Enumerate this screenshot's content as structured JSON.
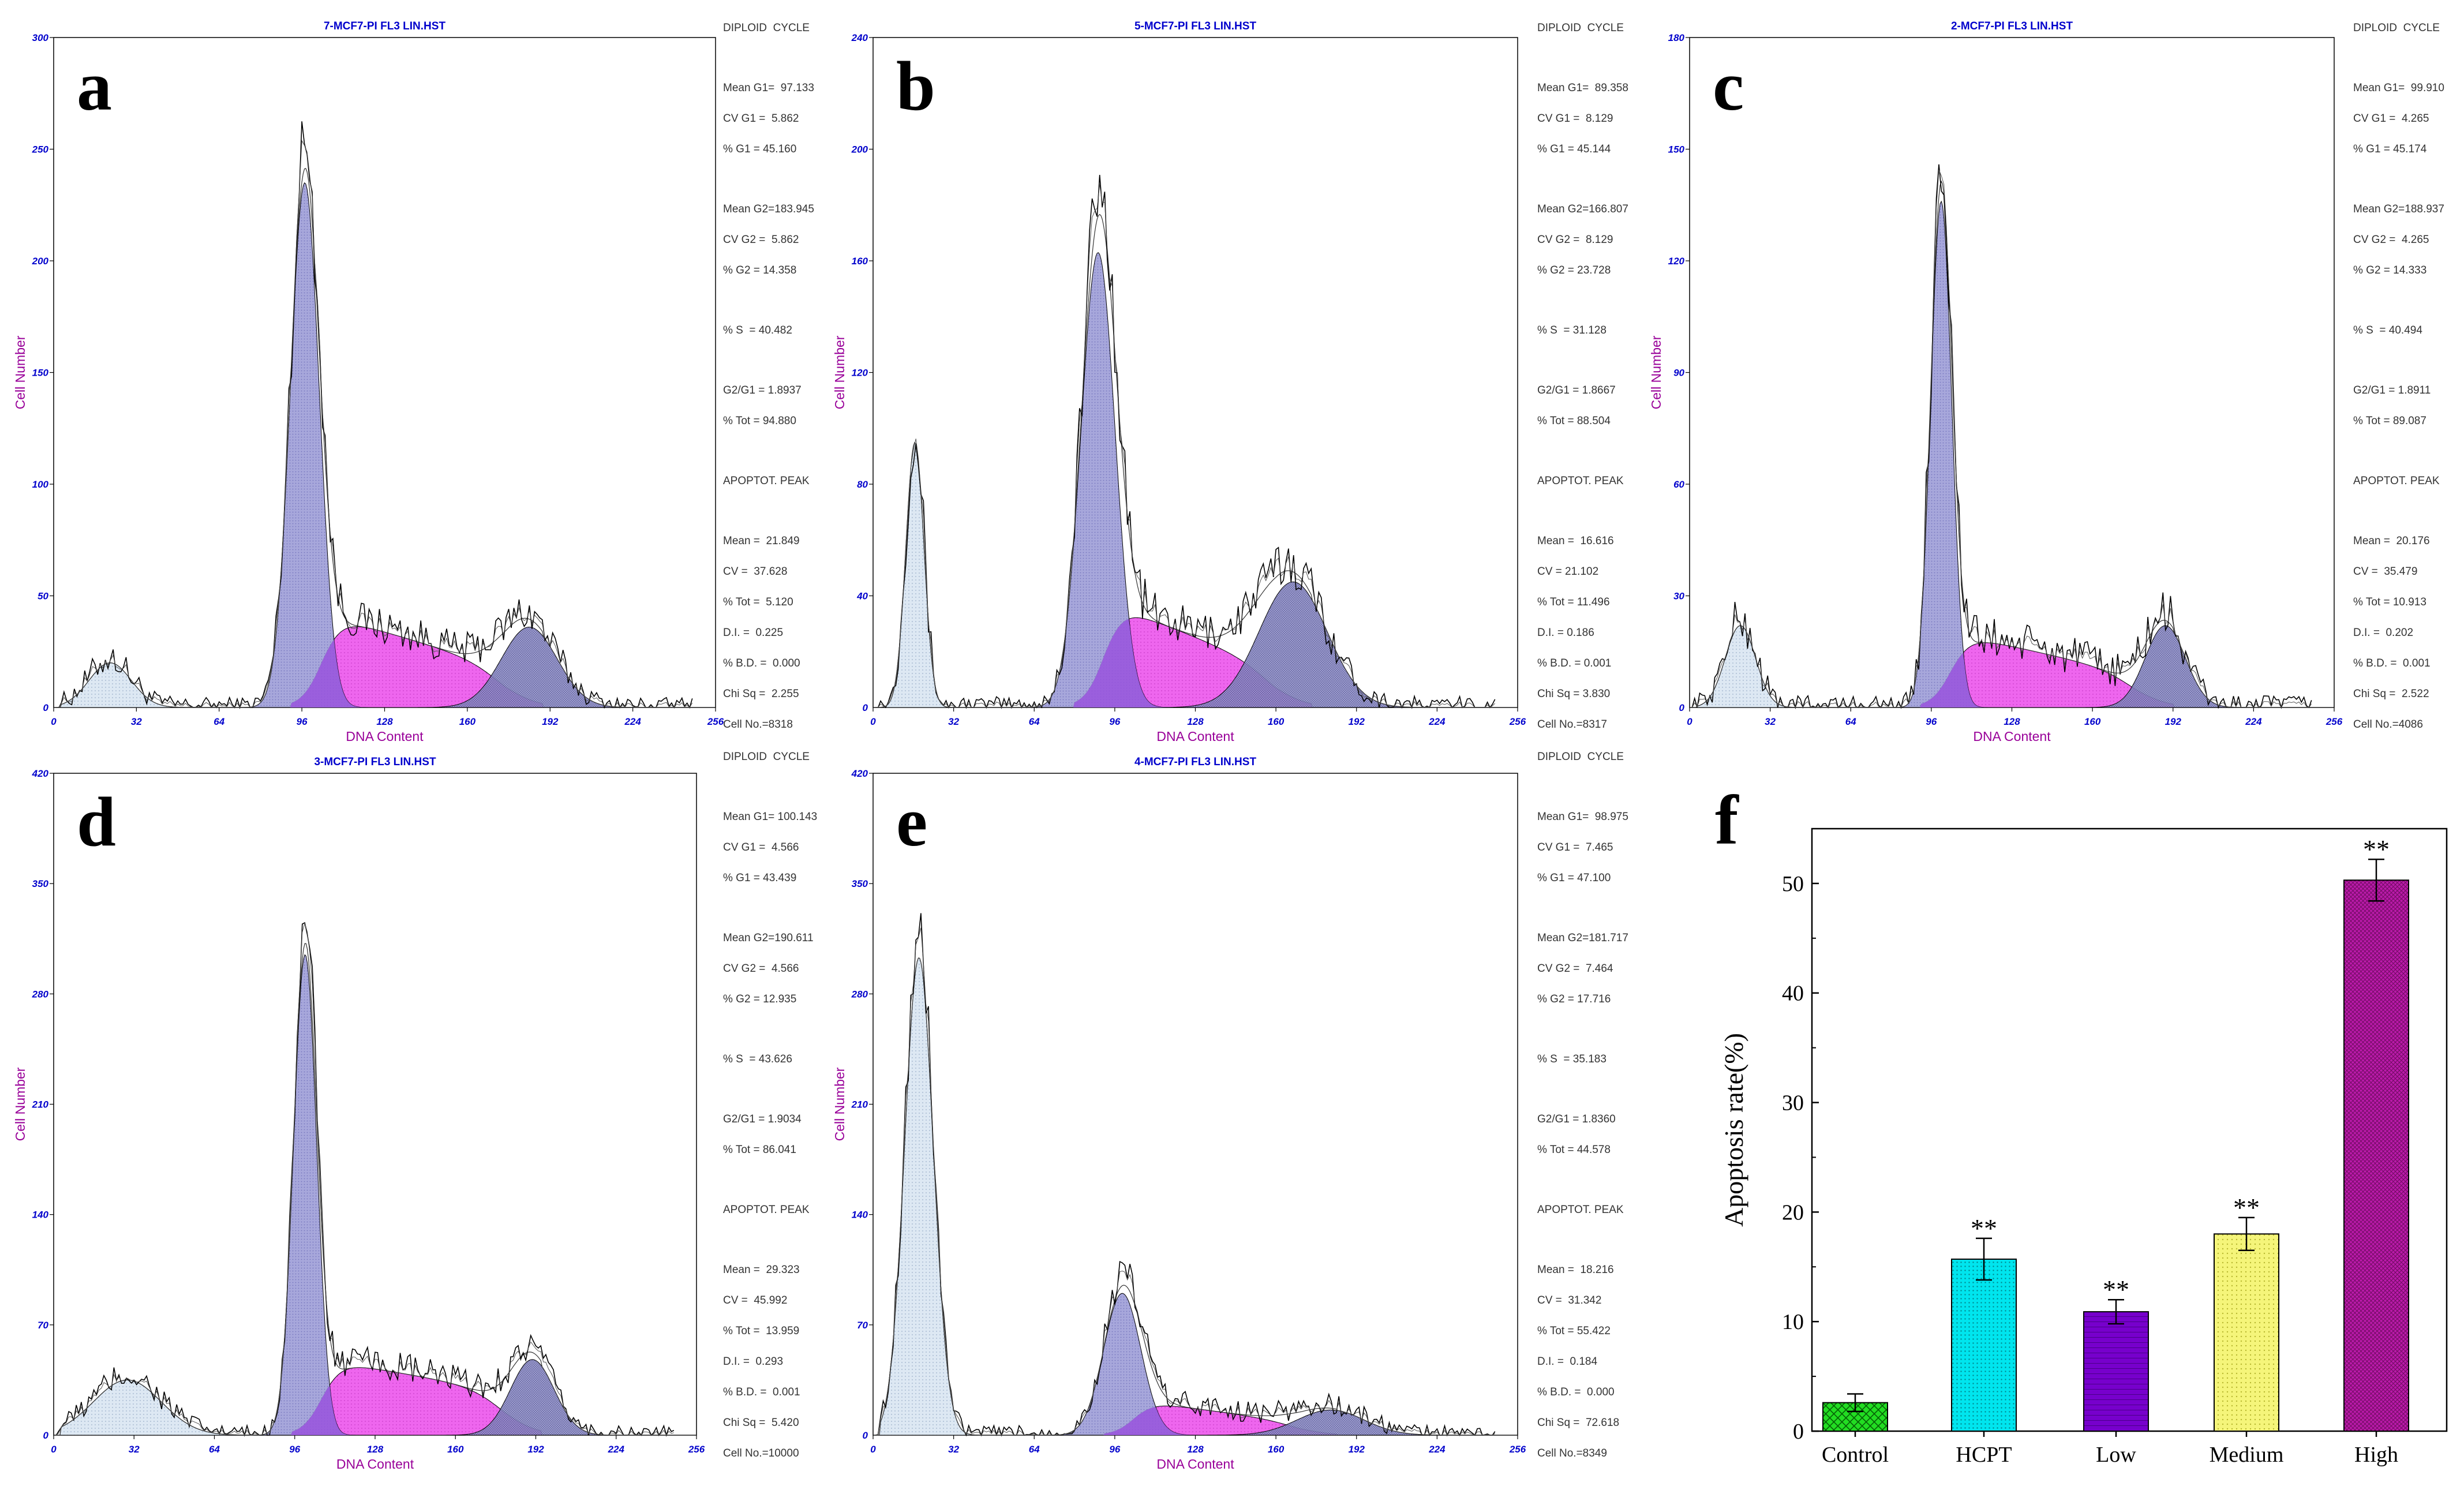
{
  "figure": {
    "axis_text_color": "#0000cc",
    "ylabel_color": "#990099",
    "stats_color": "#333333"
  },
  "chart_data": [
    {
      "type": "area",
      "panel": "a",
      "title": "7-MCF7-PI FL3 LIN.HST",
      "xlabel": "DNA Content",
      "ylabel": "Cell Number",
      "xlim": [
        0,
        256
      ],
      "ylim": [
        0,
        300
      ],
      "xticks": [
        "0",
        "32",
        "64",
        "96",
        "128",
        "160",
        "192",
        "224",
        "256"
      ],
      "yticks": [
        "50",
        "100",
        "150",
        "200",
        "250",
        "300"
      ],
      "components": {
        "apoptotic": {
          "mean": 21.849,
          "sd": 8.2,
          "amp": 20
        },
        "g1": {
          "mean": 97.133,
          "sd": 5.6,
          "amp": 235
        },
        "s": {
          "start": 104,
          "end": 175,
          "top": 42,
          "bottom": 18
        },
        "g2": {
          "mean": 183.945,
          "sd": 10.8,
          "amp": 36
        }
      },
      "stats": [
        "DIPLOID  CYCLE",
        "Mean G1=  97.133",
        "CV G1 =  5.862",
        "% G1 = 45.160",
        "Mean G2=183.945",
        "CV G2 =  5.862",
        "% G2 = 14.358",
        "% S  = 40.482",
        "G2/G1 = 1.8937",
        "% Tot = 94.880",
        "APOPTOT. PEAK",
        "Mean =  21.849",
        "CV =  37.628",
        "% Tot =  5.120",
        "D.I. =  0.225",
        "% B.D. =  0.000",
        "Chi Sq =  2.255",
        "Cell No.=8318"
      ]
    },
    {
      "type": "area",
      "panel": "b",
      "title": "5-MCF7-PI FL3 LIN.HST",
      "xlabel": "DNA Content",
      "ylabel": "Cell Number",
      "xlim": [
        0,
        256
      ],
      "ylim": [
        0,
        240
      ],
      "xticks": [
        "0",
        "32",
        "64",
        "96",
        "128",
        "160",
        "192",
        "224",
        "256"
      ],
      "yticks": [
        "40",
        "80",
        "120",
        "160",
        "200",
        "240"
      ],
      "components": {
        "apoptotic": {
          "mean": 16.616,
          "sd": 3.6,
          "amp": 95
        },
        "g1": {
          "mean": 89.358,
          "sd": 6.8,
          "amp": 163
        },
        "s": {
          "start": 92,
          "end": 160,
          "top": 38,
          "bottom": 14
        },
        "g2": {
          "mean": 166.807,
          "sd": 13.5,
          "amp": 45
        }
      },
      "stats": [
        "DIPLOID  CYCLE",
        "Mean G1=  89.358",
        "CV G1 =  8.129",
        "% G1 = 45.144",
        "Mean G2=166.807",
        "CV G2 =  8.129",
        "% G2 = 23.728",
        "% S  = 31.128",
        "G2/G1 = 1.8667",
        "% Tot = 88.504",
        "APOPTOT. PEAK",
        "Mean =  16.616",
        "CV = 21.102",
        "% Tot = 11.496",
        "D.I. = 0.186",
        "% B.D. = 0.001",
        "Chi Sq = 3.830",
        "Cell No.=8317"
      ]
    },
    {
      "type": "area",
      "panel": "c",
      "title": "2-MCF7-PI FL3 LIN.HST",
      "xlabel": "DNA Content",
      "ylabel": "Cell Number",
      "xlim": [
        0,
        256
      ],
      "ylim": [
        0,
        180
      ],
      "xticks": [
        "0",
        "32",
        "64",
        "96",
        "128",
        "160",
        "192",
        "224",
        "256"
      ],
      "yticks": [
        "30",
        "60",
        "90",
        "120",
        "150",
        "180"
      ],
      "components": {
        "apoptotic": {
          "mean": 20.176,
          "sd": 6.0,
          "amp": 22
        },
        "g1": {
          "mean": 99.91,
          "sd": 4.2,
          "amp": 136
        },
        "s": {
          "start": 104,
          "end": 178,
          "top": 20,
          "bottom": 9
        },
        "g2": {
          "mean": 188.937,
          "sd": 8.0,
          "amp": 22
        }
      },
      "stats": [
        "DIPLOID  CYCLE",
        "Mean G1=  99.910",
        "CV G1 =  4.265",
        "% G1 = 45.174",
        "Mean G2=188.937",
        "CV G2 =  4.265",
        "% G2 = 14.333",
        "% S  = 40.494",
        "G2/G1 = 1.8911",
        "% Tot = 89.087",
        "APOPTOT. PEAK",
        "Mean =  20.176",
        "CV =  35.479",
        "% Tot = 10.913",
        "D.I. =  0.202",
        "% B.D. =  0.001",
        "Chi Sq =  2.522",
        "Cell No.=4086"
      ]
    },
    {
      "type": "area",
      "panel": "d",
      "title": "3-MCF7-PI FL3 LIN.HST",
      "xlabel": "DNA Content",
      "ylabel": "Cell Number",
      "xlim": [
        0,
        256
      ],
      "ylim": [
        0,
        420
      ],
      "xticks": [
        "0",
        "32",
        "64",
        "96",
        "128",
        "160",
        "192",
        "224",
        "256"
      ],
      "yticks": [
        "70",
        "140",
        "210",
        "280",
        "350",
        "420"
      ],
      "components": {
        "apoptotic": {
          "mean": 29.323,
          "sd": 13.5,
          "amp": 35
        },
        "g1": {
          "mean": 100.143,
          "sd": 4.6,
          "amp": 305
        },
        "s": {
          "start": 107,
          "end": 180,
          "top": 48,
          "bottom": 28
        },
        "g2": {
          "mean": 190.611,
          "sd": 8.7,
          "amp": 48
        }
      },
      "stats": [
        "DIPLOID  CYCLE",
        "Mean G1= 100.143",
        "CV G1 =  4.566",
        "% G1 = 43.439",
        "Mean G2=190.611",
        "CV G2 =  4.566",
        "% G2 = 12.935",
        "% S  = 43.626",
        "G2/G1 = 1.9034",
        "% Tot = 86.041",
        "APOPTOT. PEAK",
        "Mean =  29.323",
        "CV =  45.992",
        "% Tot =  13.959",
        "D.I. =  0.293",
        "% B.D. =  0.001",
        "Chi Sq =  5.420",
        "Cell No.=10000"
      ]
    },
    {
      "type": "area",
      "panel": "e",
      "title": "4-MCF7-PI FL3 LIN.HST",
      "xlabel": "DNA Content",
      "ylabel": "Cell Number",
      "xlim": [
        0,
        256
      ],
      "ylim": [
        0,
        420
      ],
      "xticks": [
        "0",
        "32",
        "64",
        "96",
        "128",
        "160",
        "192",
        "224",
        "256"
      ],
      "yticks": [
        "70",
        "140",
        "210",
        "280",
        "350",
        "420"
      ],
      "components": {
        "apoptotic": {
          "mean": 18.216,
          "sd": 5.7,
          "amp": 303
        },
        "g1": {
          "mean": 98.975,
          "sd": 7.4,
          "amp": 90
        },
        "s": {
          "start": 104,
          "end": 170,
          "top": 22,
          "bottom": 8
        },
        "g2": {
          "mean": 181.717,
          "sd": 13.3,
          "amp": 16
        }
      },
      "stats": [
        "DIPLOID  CYCLE",
        "Mean G1=  98.975",
        "CV G1 =  7.465",
        "% G1 = 47.100",
        "Mean G2=181.717",
        "CV G2 =  7.464",
        "% G2 = 17.716",
        "% S  = 35.183",
        "G2/G1 = 1.8360",
        "% Tot = 44.578",
        "APOPTOT. PEAK",
        "Mean =  18.216",
        "CV =  31.342",
        "% Tot = 55.422",
        "D.I. =  0.184",
        "% B.D. =  0.000",
        "Chi Sq =  72.618",
        "Cell No.=8349"
      ]
    },
    {
      "type": "bar",
      "panel": "f",
      "title": "",
      "xlabel": "",
      "ylabel": "Apoptosis rate(%)",
      "categories": [
        "Control",
        "HCPT",
        "Low",
        "Medium",
        "High"
      ],
      "values": [
        2.6,
        15.7,
        10.9,
        18.0,
        50.3
      ],
      "errors": [
        0.8,
        1.9,
        1.1,
        1.5,
        1.9
      ],
      "significance": [
        "",
        "**",
        "**",
        "**",
        "**"
      ],
      "colors": [
        "#22dd22",
        "#00e5ee",
        "#7700cc",
        "#f5f57a",
        "#bb1aaa"
      ],
      "ylim": [
        0,
        55
      ],
      "yticks": [
        "0",
        "10",
        "20",
        "30",
        "40",
        "50"
      ]
    }
  ]
}
